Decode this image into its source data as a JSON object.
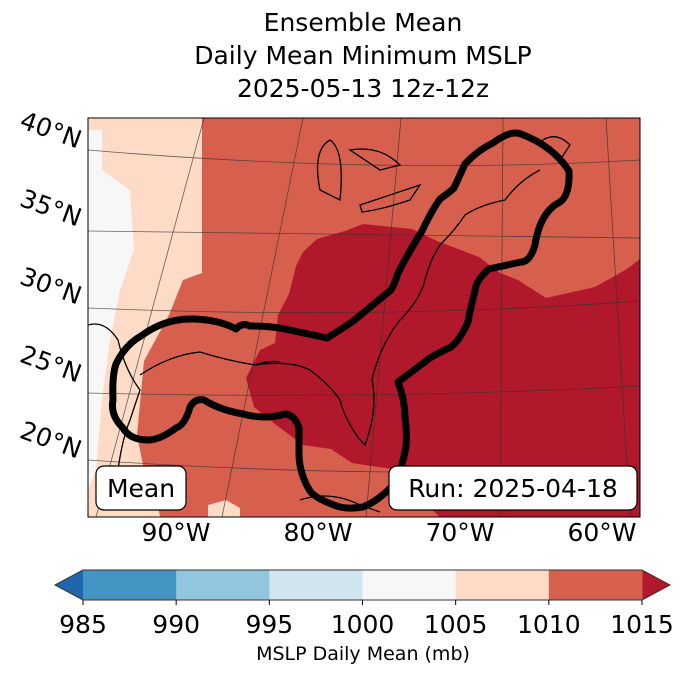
{
  "title": {
    "line1": "Ensemble Mean",
    "line2": "Daily Mean Minimum MSLP",
    "line3": "2025-05-13 12z-12z"
  },
  "map": {
    "lat_labels": [
      "40°N",
      "35°N",
      "30°N",
      "25°N",
      "20°N"
    ],
    "lon_labels": [
      "90°W",
      "80°W",
      "70°W",
      "60°W"
    ],
    "mean_label": "Mean",
    "run_label": "Run: 2025-04-18",
    "contour_color": "#000000"
  },
  "colorbar": {
    "ticks": [
      "985",
      "990",
      "995",
      "1000",
      "1005",
      "1010",
      "1015"
    ],
    "colors": [
      "#4393c3",
      "#92c5de",
      "#d1e5f0",
      "#f7f7f7",
      "#fddbc7",
      "#d6604d"
    ],
    "under_color": "#2166ac",
    "over_color": "#b2182b",
    "label": "MSLP Daily Mean (mb)"
  }
}
